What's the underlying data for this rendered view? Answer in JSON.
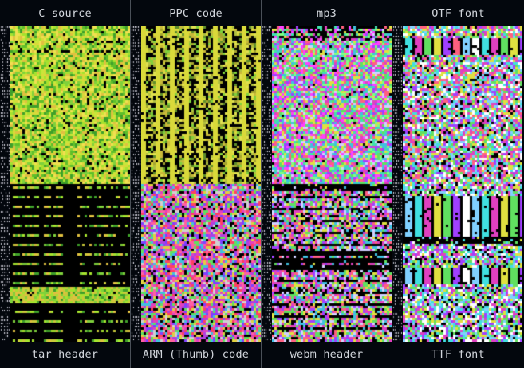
{
  "panels": [
    {
      "top_label": "C source",
      "bottom_label": "tar header",
      "top_palette": [
        "#7fd13b",
        "#a6e22e",
        "#c9e63a",
        "#d9d93a",
        "#5fbf2a",
        "#e0c040",
        "#3fa02a",
        "#f0e050"
      ],
      "bottom_palette": [
        "#7fd13b",
        "#a6e22e",
        "#c9c93a",
        "#3fa02a",
        "#e0c040"
      ]
    },
    {
      "top_label": "PPC code",
      "bottom_label": "ARM (Thumb) code",
      "top_palette": [
        "#d9d93a",
        "#c9b83a",
        "#7fd13b",
        "#a6a62e",
        "#e0e050",
        "#5f8f2a",
        "#b0c040"
      ],
      "bottom_palette": [
        "#e040c0",
        "#b040e0",
        "#ff60a0",
        "#40c0e0",
        "#e0d040",
        "#7f40ff",
        "#ff4060",
        "#60e060",
        "#d0d0d0"
      ]
    },
    {
      "top_label": "mp3",
      "bottom_label": "webm header",
      "top_palette": [
        "#40c0e0",
        "#e040c0",
        "#60e060",
        "#e0e040",
        "#a040ff",
        "#ff6080",
        "#40e0b0",
        "#d0d0ff",
        "#ff40ff",
        "#80ff80"
      ],
      "bottom_palette": [
        "#40c0e0",
        "#e040c0",
        "#60e060",
        "#e0e040",
        "#a040ff",
        "#ff6080",
        "#d0d0ff"
      ]
    },
    {
      "top_label": "OTF font",
      "bottom_label": "TTF font",
      "top_palette": [
        "#40e0e0",
        "#e040c0",
        "#60e060",
        "#e0e040",
        "#a040ff",
        "#ff6080",
        "#80d0ff",
        "#ffffff"
      ],
      "bottom_palette": [
        "#80d0ff",
        "#40e0e0",
        "#e040c0",
        "#e0e040",
        "#60e060",
        "#a040ff",
        "#ffffff"
      ]
    }
  ]
}
